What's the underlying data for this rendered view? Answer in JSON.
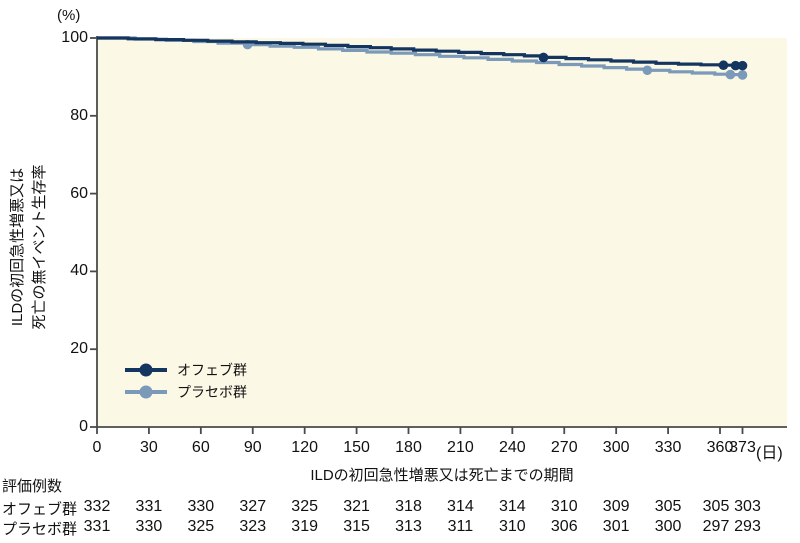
{
  "colors": {
    "page_bg": "#ffffff",
    "plot_bg": "#fbf8e6",
    "axis": "#4a4a4a",
    "text": "#111111",
    "ofev": "#14355f",
    "placebo": "#7b99b8"
  },
  "chart_data": {
    "type": "line",
    "subtype": "kaplan-meier-step",
    "title": "",
    "xlabel": "ILDの初回急性増悪又は死亡までの期間",
    "x_unit_label": "(日)",
    "y_unit_label": "(%)",
    "ylabel_lines": [
      "ILDの初回急性増悪又は",
      "死亡の無イベント生存率"
    ],
    "x_ticks": [
      0,
      30,
      60,
      90,
      120,
      150,
      180,
      210,
      240,
      270,
      300,
      330,
      360,
      373
    ],
    "y_ticks": [
      0,
      20,
      40,
      60,
      80,
      100
    ],
    "xlim": [
      0,
      398
    ],
    "ylim": [
      0,
      100
    ],
    "grid": false,
    "legend_position": "inside-lower-left",
    "series": [
      {
        "name": "オフェブ群",
        "color": "#14355f",
        "points": [
          [
            0,
            100
          ],
          [
            18,
            99.8
          ],
          [
            34,
            99.6
          ],
          [
            50,
            99.4
          ],
          [
            64,
            99.2
          ],
          [
            78,
            99.0
          ],
          [
            92,
            98.8
          ],
          [
            106,
            98.6
          ],
          [
            119,
            98.4
          ],
          [
            132,
            98.1
          ],
          [
            145,
            97.8
          ],
          [
            158,
            97.5
          ],
          [
            170,
            97.2
          ],
          [
            183,
            96.9
          ],
          [
            196,
            96.6
          ],
          [
            209,
            96.3
          ],
          [
            222,
            96.0
          ],
          [
            235,
            95.7
          ],
          [
            247,
            95.4
          ],
          [
            258,
            95.0
          ],
          [
            271,
            94.7
          ],
          [
            284,
            94.4
          ],
          [
            297,
            94.1
          ],
          [
            310,
            93.8
          ],
          [
            323,
            93.5
          ],
          [
            336,
            93.3
          ],
          [
            349,
            93.1
          ],
          [
            360,
            93.0
          ],
          [
            373,
            92.9
          ]
        ],
        "censor_marks": [
          [
            258,
            95.0
          ],
          [
            362,
            93.0
          ],
          [
            369,
            92.9
          ],
          [
            373,
            92.9
          ]
        ]
      },
      {
        "name": "プラセボ群",
        "color": "#7b99b8",
        "points": [
          [
            0,
            100
          ],
          [
            22,
            99.7
          ],
          [
            40,
            99.4
          ],
          [
            56,
            99.1
          ],
          [
            70,
            98.7
          ],
          [
            87,
            98.3
          ],
          [
            100,
            97.9
          ],
          [
            114,
            97.6
          ],
          [
            128,
            97.2
          ],
          [
            142,
            96.8
          ],
          [
            156,
            96.4
          ],
          [
            170,
            96.1
          ],
          [
            184,
            95.7
          ],
          [
            198,
            95.3
          ],
          [
            212,
            94.9
          ],
          [
            226,
            94.5
          ],
          [
            240,
            94.1
          ],
          [
            254,
            93.7
          ],
          [
            267,
            93.2
          ],
          [
            280,
            92.8
          ],
          [
            293,
            92.4
          ],
          [
            306,
            92.0
          ],
          [
            318,
            91.7
          ],
          [
            331,
            91.3
          ],
          [
            344,
            91.0
          ],
          [
            357,
            90.7
          ],
          [
            366,
            90.6
          ],
          [
            373,
            90.5
          ]
        ],
        "censor_marks": [
          [
            87,
            98.3
          ],
          [
            318,
            91.7
          ],
          [
            366,
            90.6
          ],
          [
            373,
            90.5
          ]
        ]
      }
    ]
  },
  "risk_table": {
    "header": "評価例数",
    "columns": [
      0,
      30,
      60,
      90,
      120,
      150,
      180,
      210,
      240,
      270,
      300,
      330,
      360,
      373
    ],
    "rows": [
      {
        "label": "オフェブ群",
        "values": [
          332,
          331,
          330,
          327,
          325,
          321,
          318,
          314,
          314,
          310,
          309,
          305,
          305,
          303
        ]
      },
      {
        "label": "プラセボ群",
        "values": [
          331,
          330,
          325,
          323,
          319,
          315,
          313,
          311,
          310,
          306,
          301,
          300,
          297,
          293
        ]
      }
    ]
  }
}
